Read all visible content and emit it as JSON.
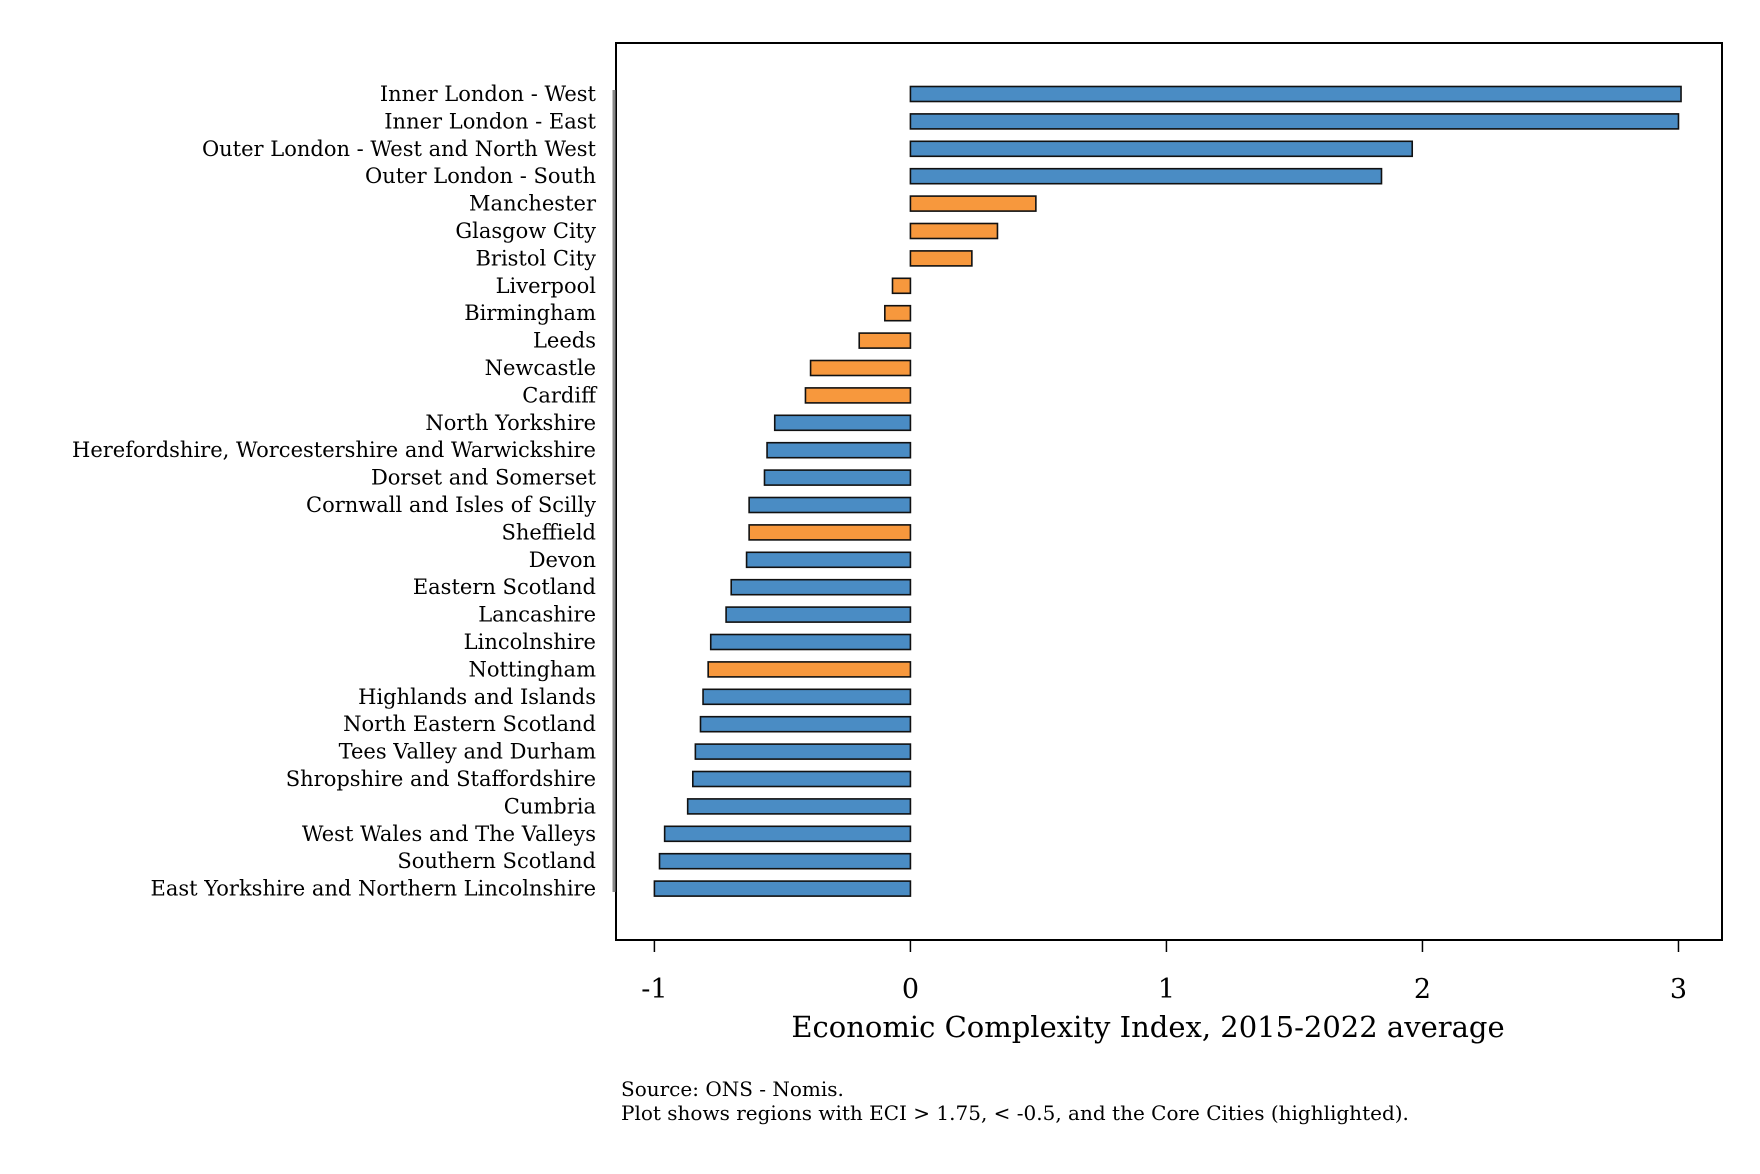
{
  "chart_data": {
    "type": "bar",
    "orientation": "horizontal",
    "xlabel": "Economic Complexity Index, 2015-2022 average",
    "ylabel": "",
    "title": "",
    "xlim": [
      -1.15,
      3.17
    ],
    "xticks": [
      "-1",
      "0",
      "1",
      "2",
      "3"
    ],
    "grid": false,
    "colors": {
      "region": "#4a8cc4",
      "core_city": "#f7983d",
      "edge": "#111111"
    },
    "categories": [
      "Inner London - West",
      "Inner London - East",
      "Outer London - West and North West",
      "Outer London - South",
      "Manchester",
      "Glasgow City",
      "Bristol City",
      "Liverpool",
      "Birmingham",
      "Leeds",
      "Newcastle",
      "Cardiff",
      "North Yorkshire",
      "Herefordshire, Worcestershire and Warwickshire",
      "Dorset and Somerset",
      "Cornwall and Isles of Scilly",
      "Sheffield",
      "Devon",
      "Eastern Scotland",
      "Lancashire",
      "Lincolnshire",
      "Nottingham",
      "Highlands and Islands",
      "North Eastern Scotland",
      "Tees Valley and Durham",
      "Shropshire and Staffordshire",
      "Cumbria",
      "West Wales and The Valleys",
      "Southern Scotland",
      "East Yorkshire and Northern Lincolnshire"
    ],
    "values": [
      3.01,
      3.0,
      1.96,
      1.84,
      0.49,
      0.34,
      0.24,
      -0.07,
      -0.1,
      -0.2,
      -0.39,
      -0.41,
      -0.53,
      -0.56,
      -0.57,
      -0.63,
      -0.63,
      -0.64,
      -0.7,
      -0.72,
      -0.78,
      -0.79,
      -0.81,
      -0.82,
      -0.84,
      -0.85,
      -0.87,
      -0.96,
      -0.98,
      -1.0
    ],
    "highlight": [
      false,
      false,
      false,
      false,
      true,
      true,
      true,
      true,
      true,
      true,
      true,
      true,
      false,
      false,
      false,
      false,
      true,
      false,
      false,
      false,
      false,
      true,
      false,
      false,
      false,
      false,
      false,
      false,
      false,
      false
    ]
  },
  "footnotes": {
    "source": "Source: ONS - Nomis.",
    "note": "Plot shows regions with ECI > 1.75, < -0.5, and the Core Cities (highlighted)."
  }
}
